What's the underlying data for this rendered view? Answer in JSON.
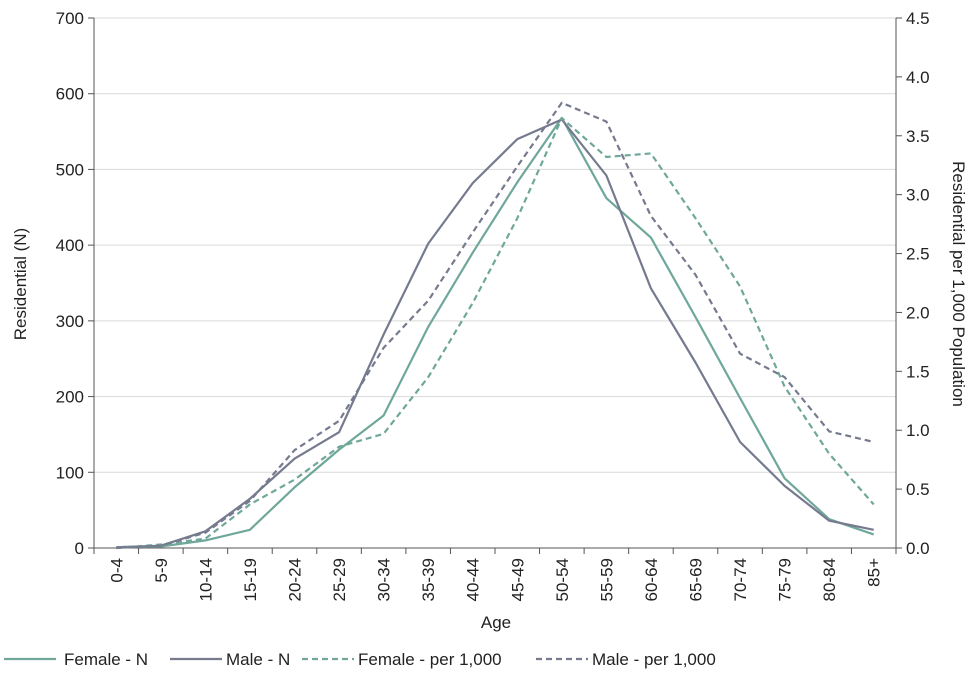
{
  "chart_data": {
    "type": "line",
    "title": "",
    "xlabel": "Age",
    "ylabel": "Residential (N)",
    "y2label": "Residential per 1,000 Population",
    "categories": [
      "0-4",
      "5-9",
      "10-14",
      "15-19",
      "20-24",
      "25-29",
      "30-34",
      "35-39",
      "40-44",
      "45-49",
      "50-54",
      "55-59",
      "60-64",
      "65-69",
      "70-74",
      "75-79",
      "80-84",
      "85+"
    ],
    "ylim": [
      0,
      700
    ],
    "yticks": [
      0,
      100,
      200,
      300,
      400,
      500,
      600,
      700
    ],
    "y2lim": [
      0,
      4.5
    ],
    "y2ticks": [
      "0.0",
      "0.5",
      "1.0",
      "1.5",
      "2.0",
      "2.5",
      "3.0",
      "3.5",
      "4.0",
      "4.5"
    ],
    "grid": "horizontal",
    "legend_position": "bottom",
    "series": [
      {
        "name": "Female - N",
        "axis": "left",
        "style": "solid",
        "color": "#6fa79b",
        "values": [
          1,
          2,
          10,
          24,
          80,
          130,
          175,
          292,
          390,
          483,
          568,
          462,
          410,
          305,
          198,
          92,
          38,
          18
        ]
      },
      {
        "name": "Male - N",
        "axis": "left",
        "style": "solid",
        "color": "#767a8e",
        "values": [
          1,
          3,
          22,
          65,
          118,
          153,
          282,
          402,
          482,
          540,
          566,
          492,
          343,
          245,
          140,
          82,
          36,
          24
        ]
      },
      {
        "name": "Female - per 1,000",
        "axis": "right",
        "style": "dashed",
        "color": "#6fa79b",
        "values": [
          0.0,
          0.03,
          0.08,
          0.37,
          0.58,
          0.86,
          0.97,
          1.45,
          2.08,
          2.8,
          3.65,
          3.32,
          3.35,
          2.8,
          2.22,
          1.37,
          0.8,
          0.37
        ]
      },
      {
        "name": "Male - per 1,000",
        "axis": "right",
        "style": "dashed",
        "color": "#767a8e",
        "values": [
          0.0,
          0.02,
          0.13,
          0.4,
          0.83,
          1.08,
          1.7,
          2.1,
          2.68,
          3.24,
          3.78,
          3.62,
          2.82,
          2.32,
          1.65,
          1.45,
          0.99,
          0.9
        ]
      }
    ]
  }
}
